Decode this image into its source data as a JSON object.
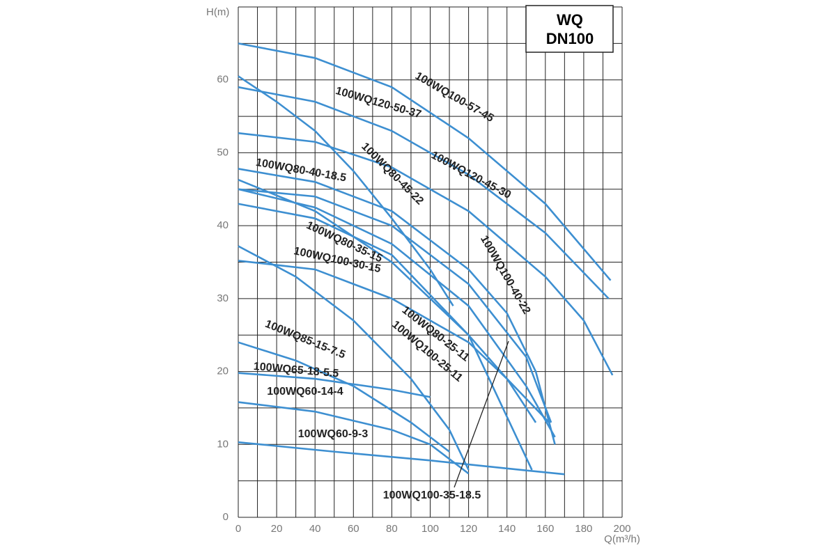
{
  "chart_data": {
    "type": "line",
    "title": [
      "WQ",
      "DN100"
    ],
    "x_label": "Q(m³/h)",
    "y_label": "H(m)",
    "xlim": [
      0,
      200
    ],
    "ylim": [
      0,
      70
    ],
    "xticks": [
      0,
      20,
      40,
      60,
      80,
      100,
      120,
      140,
      160,
      180,
      200
    ],
    "yticks": [
      0,
      10,
      20,
      30,
      40,
      50,
      60
    ],
    "xgrid": [
      0,
      10,
      20,
      30,
      40,
      50,
      60,
      70,
      80,
      90,
      100,
      110,
      120,
      130,
      140,
      150,
      160,
      170,
      180,
      190,
      200
    ],
    "ygrid": [
      0,
      5,
      10,
      15,
      20,
      25,
      30,
      35,
      40,
      45,
      50,
      55,
      60,
      65,
      70
    ],
    "grid": true,
    "series": [
      {
        "name": "100WQ100-57-45",
        "color": "#3d8fd1",
        "x": [
          0,
          40,
          80,
          120,
          160,
          194
        ],
        "values": [
          65,
          63,
          59,
          52,
          43,
          32.5
        ]
      },
      {
        "name": "100WQ120-50-37",
        "color": "#3d8fd1",
        "x": [
          0,
          40,
          80,
          120,
          160,
          193
        ],
        "values": [
          59,
          57,
          53,
          47,
          39,
          30
        ]
      },
      {
        "name": "100WQ120-45-30",
        "color": "#3d8fd1",
        "x": [
          0,
          40,
          80,
          120,
          160,
          180,
          195
        ],
        "values": [
          52.7,
          51.5,
          48,
          42,
          33,
          27,
          19.5
        ]
      },
      {
        "name": "100WQ80-45-22",
        "color": "#3d8fd1",
        "x": [
          0,
          20,
          40,
          60,
          80,
          100,
          112
        ],
        "values": [
          60.5,
          57,
          53,
          47.5,
          41,
          34,
          29
        ]
      },
      {
        "name": "100WQ100-40-22",
        "color": "#3d8fd1",
        "x": [
          0,
          40,
          80,
          120,
          140,
          155,
          165
        ],
        "values": [
          47.8,
          46,
          42,
          34,
          28,
          20,
          10
        ]
      },
      {
        "name": "100WQ80-40-18.5",
        "color": "#3d8fd1",
        "x": [
          0,
          40,
          80,
          120,
          140,
          162
        ],
        "values": [
          46.3,
          42,
          35,
          25,
          19,
          13
        ]
      },
      {
        "name": "100WQ100-35-18.5",
        "color": "#3d8fd1",
        "x": [
          0,
          40,
          80,
          120,
          150,
          163
        ],
        "values": [
          45,
          44,
          40,
          32,
          22,
          13
        ]
      },
      {
        "name": "100WQ80-35-15",
        "color": "#3d8fd1",
        "x": [
          0,
          40,
          80,
          120,
          150,
          165
        ],
        "values": [
          45,
          42.5,
          37.5,
          29,
          18,
          11
        ]
      },
      {
        "name": "100WQ100-30-15",
        "color": "#3d8fd1",
        "x": [
          0,
          40,
          80,
          120,
          140,
          155
        ],
        "values": [
          35.2,
          34,
          30,
          24,
          19,
          13
        ]
      },
      {
        "name": "100WQ80-25-11",
        "color": "#3d8fd1",
        "x": [
          0,
          30,
          60,
          90,
          110,
          120
        ],
        "values": [
          37.2,
          33,
          27,
          19,
          12,
          6.5
        ]
      },
      {
        "name": "100WQ100-25-11",
        "color": "#3d8fd1",
        "x": [
          0,
          40,
          80,
          120,
          153
        ],
        "values": [
          43,
          41,
          36,
          25,
          6.5
        ]
      },
      {
        "name": "100WQ85-15-7.5",
        "color": "#3d8fd1",
        "x": [
          0,
          30,
          60,
          90,
          110
        ],
        "values": [
          24,
          21.5,
          18,
          13,
          9
        ]
      },
      {
        "name": "100WQ65-18-5.5",
        "color": "#3d8fd1",
        "x": [
          0,
          40,
          80,
          100
        ],
        "values": [
          19.8,
          19,
          17.5,
          16.5
        ]
      },
      {
        "name": "100WQ60-14-4",
        "color": "#3d8fd1",
        "x": [
          0,
          40,
          80,
          100,
          120
        ],
        "values": [
          15.8,
          14.5,
          12,
          10,
          6
        ]
      },
      {
        "name": "100WQ60-9-3",
        "color": "#3d8fd1",
        "x": [
          0,
          50,
          100,
          140,
          170
        ],
        "values": [
          10.3,
          9,
          7.8,
          6.7,
          5.9
        ]
      }
    ]
  }
}
